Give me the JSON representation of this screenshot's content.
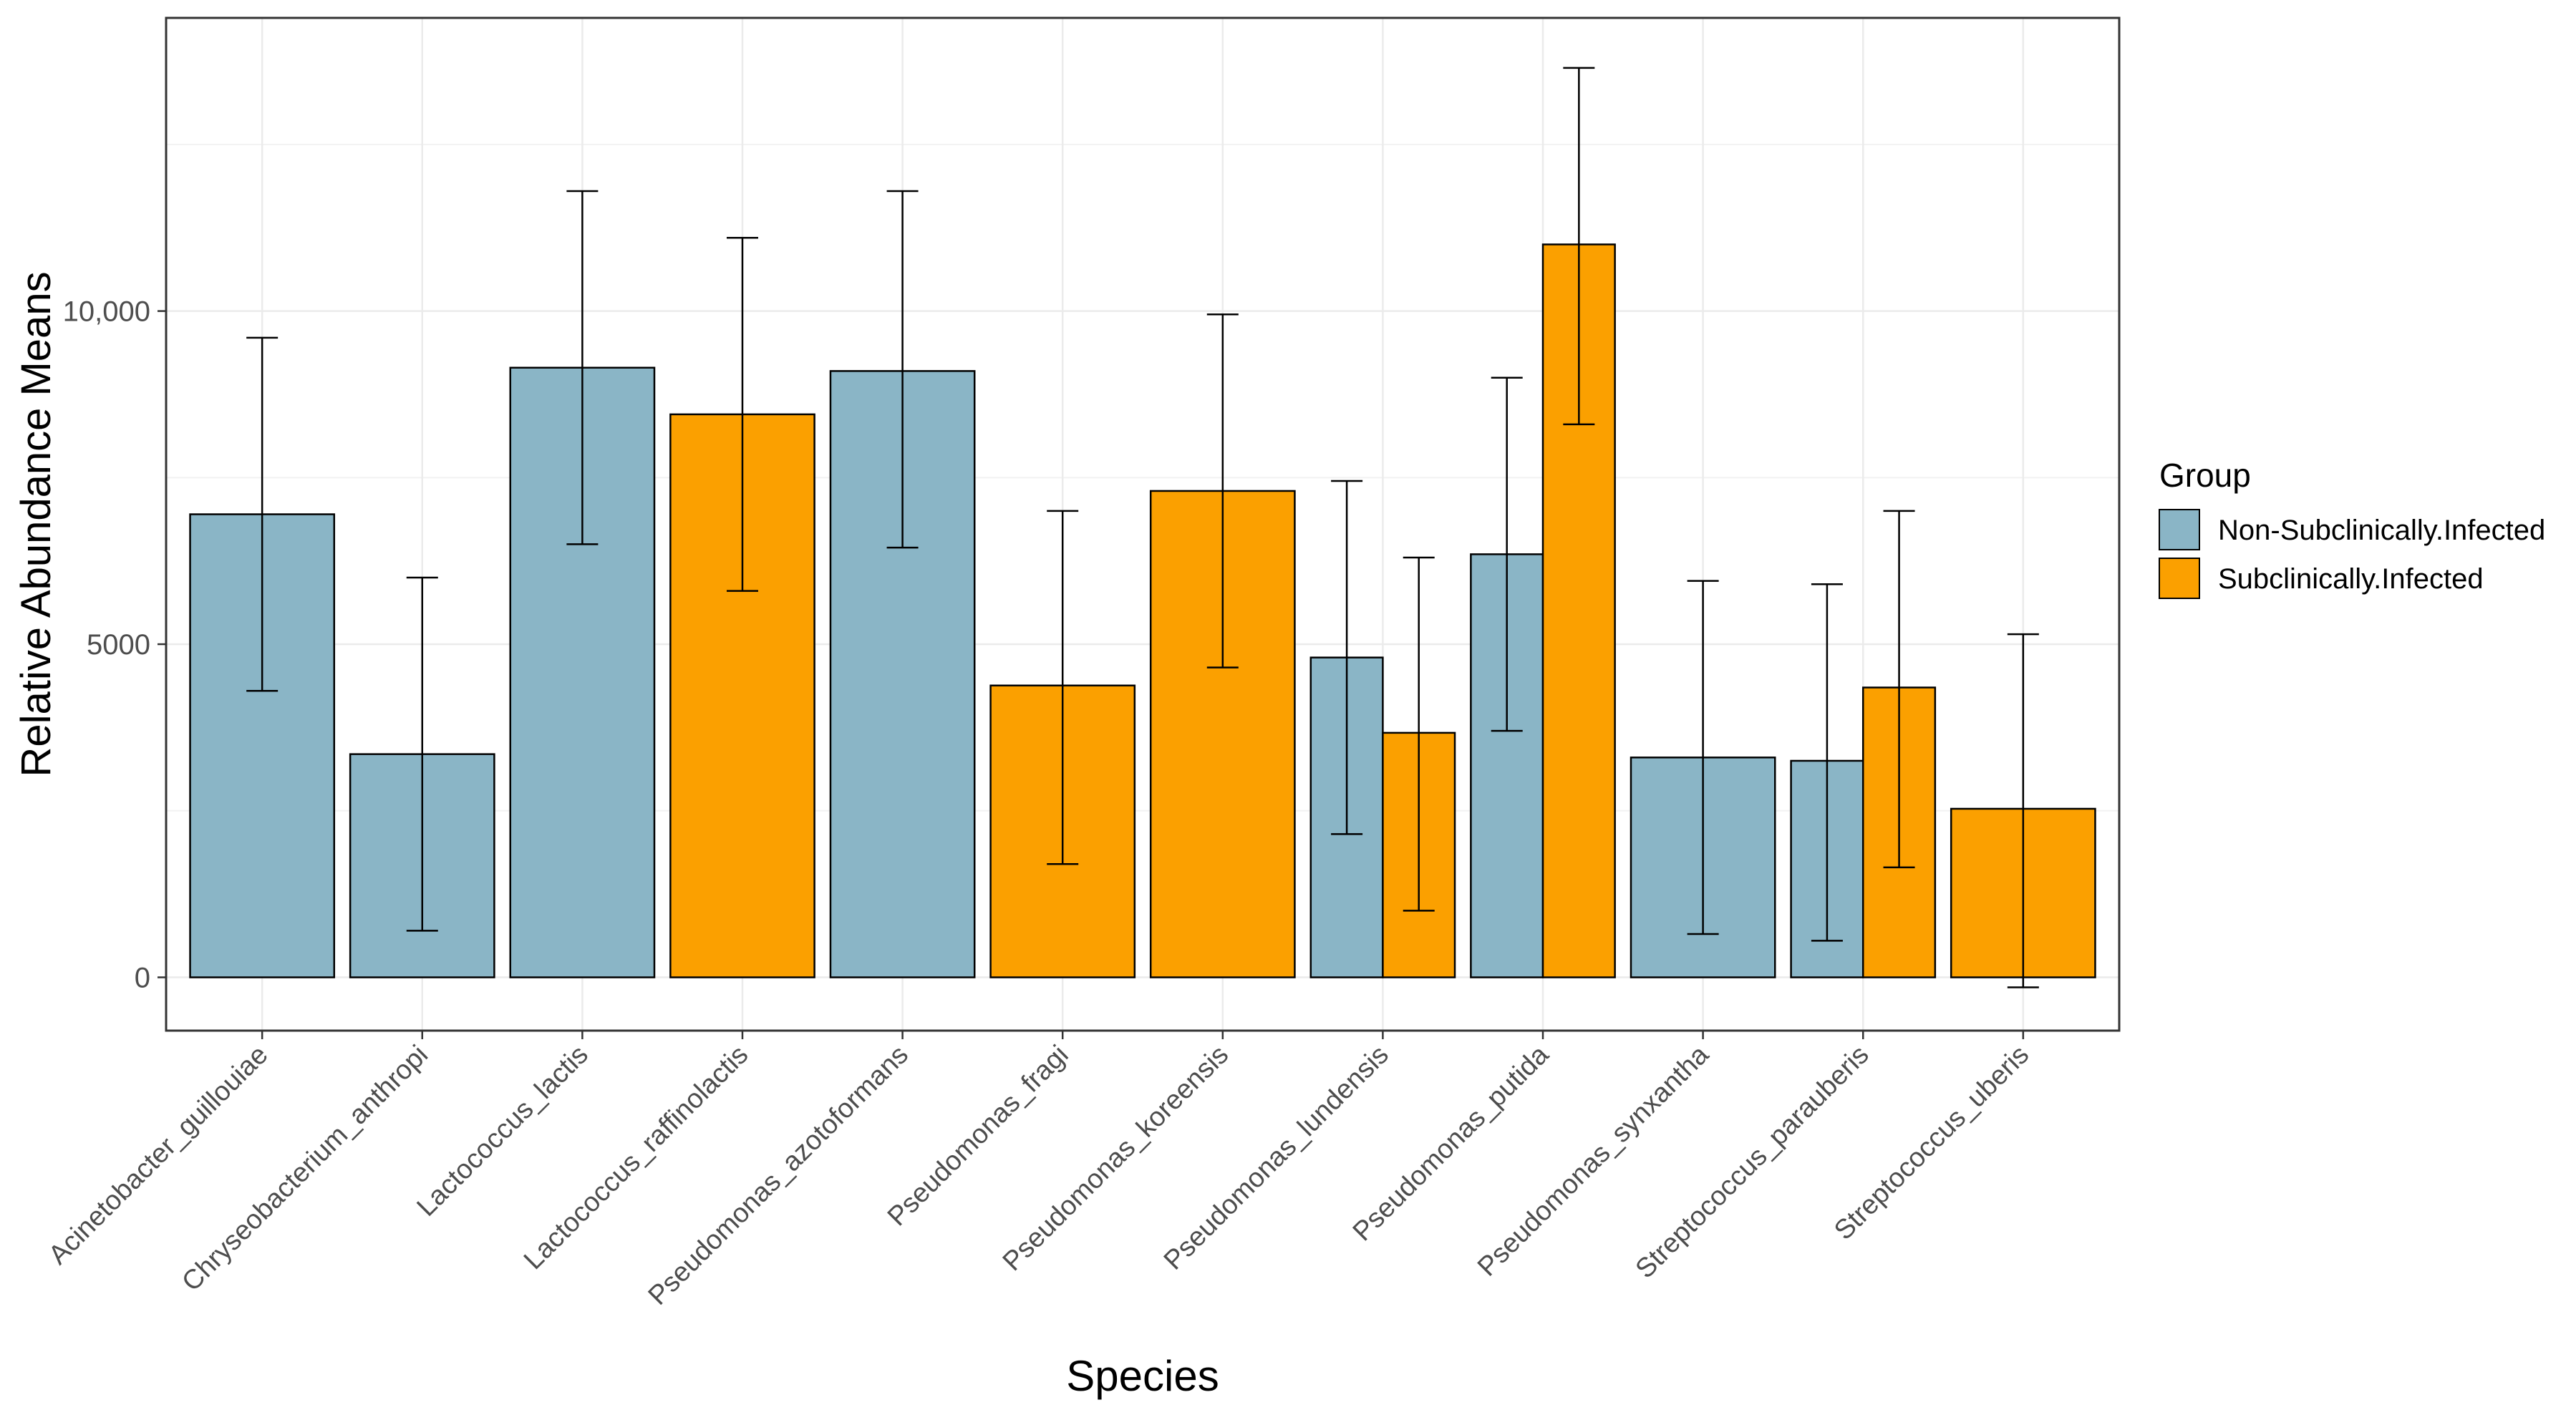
{
  "chart_data": {
    "type": "bar",
    "title": "",
    "xlabel": "Species",
    "ylabel": "Relative Abundance Means",
    "ylim": [
      -800,
      14400
    ],
    "yticks": [
      {
        "value": 0,
        "label": "0"
      },
      {
        "value": 5000,
        "label": "5000"
      },
      {
        "value": 10000,
        "label": "10,000"
      }
    ],
    "grid": true,
    "legend": {
      "title": "Group",
      "position": "right",
      "entries": [
        {
          "name": "Non-Subclinically.Infected",
          "color": "#8ab5c6"
        },
        {
          "name": "Subclinically.Infected",
          "color": "#fba000"
        }
      ]
    },
    "categories": [
      "Acinetobacter_guillouiae",
      "Chryseobacterium_anthropi",
      "Lactococcus_lactis",
      "Lactococcus_raffinolactis",
      "Pseudomonas_azotoformans",
      "Pseudomonas_fragi",
      "Pseudomonas_koreensis",
      "Pseudomonas_lundensis",
      "Pseudomonas_putida",
      "Pseudomonas_synxantha",
      "Streptococcus_parauberis",
      "Streptococcus_uberis"
    ],
    "series": [
      {
        "name": "Non-Subclinically.Infected",
        "color": "#8ab5c6",
        "values": [
          6950,
          3350,
          9150,
          null,
          9100,
          null,
          null,
          4800,
          6350,
          3300,
          3250,
          null
        ],
        "error_low": [
          4300,
          700,
          6500,
          null,
          6450,
          null,
          null,
          2150,
          3700,
          650,
          550,
          null
        ],
        "error_high": [
          9600,
          6000,
          11800,
          null,
          11800,
          null,
          null,
          7450,
          9000,
          5950,
          5900,
          null
        ]
      },
      {
        "name": "Subclinically.Infected",
        "color": "#fba000",
        "values": [
          null,
          null,
          null,
          8450,
          null,
          4380,
          7300,
          3670,
          11000,
          null,
          4350,
          2530
        ],
        "error_low": [
          null,
          null,
          null,
          5800,
          null,
          1700,
          4650,
          1000,
          8300,
          null,
          1650,
          -150
        ],
        "error_high": [
          null,
          null,
          null,
          11100,
          null,
          7000,
          9950,
          6300,
          13650,
          null,
          7000,
          5150
        ]
      }
    ]
  }
}
